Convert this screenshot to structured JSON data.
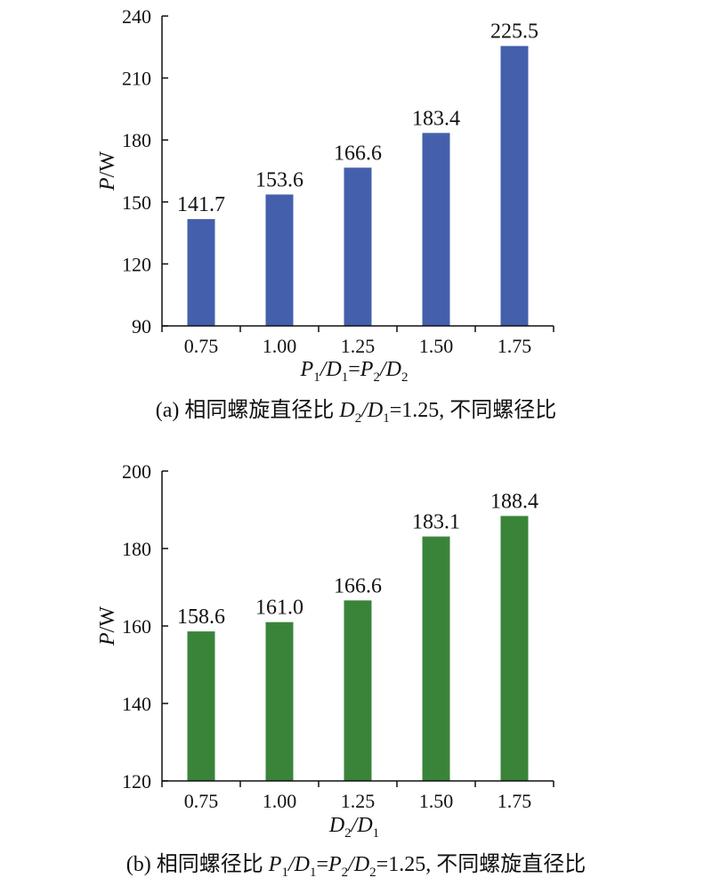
{
  "chart_data": [
    {
      "type": "bar",
      "categories": [
        "0.75",
        "1.00",
        "1.25",
        "1.50",
        "1.75"
      ],
      "values": [
        141.7,
        153.6,
        166.6,
        183.4,
        225.5
      ],
      "value_labels": [
        "141.7",
        "153.6",
        "166.6",
        "183.4",
        "225.5"
      ],
      "ylabel": {
        "var": "P",
        "unit": "/W"
      },
      "xlabel": {
        "a": "P",
        "a_sub": "1",
        "b": "/D",
        "b_sub": "1",
        "eq": "=",
        "c": "P",
        "c_sub": "2",
        "d": "/D",
        "d_sub": "2"
      },
      "yticks": [
        "90",
        "120",
        "150",
        "180",
        "210",
        "240"
      ],
      "ylim": [
        90,
        240
      ],
      "color": "#4460ac",
      "caption": {
        "prefix": "(a) 相同螺旋直径比 ",
        "v1": "D",
        "v1_sub": "2",
        "v2": "/D",
        "v2_sub": "1",
        "suffix": "=1.25, 不同螺径比"
      }
    },
    {
      "type": "bar",
      "categories": [
        "0.75",
        "1.00",
        "1.25",
        "1.50",
        "1.75"
      ],
      "values": [
        158.6,
        161.0,
        166.6,
        183.1,
        188.4
      ],
      "value_labels": [
        "158.6",
        "161.0",
        "166.6",
        "183.1",
        "188.4"
      ],
      "ylabel": {
        "var": "P",
        "unit": "/W"
      },
      "xlabel": {
        "a": "D",
        "a_sub": "2",
        "b": "/D",
        "b_sub": "1"
      },
      "yticks": [
        "120",
        "140",
        "160",
        "180",
        "200"
      ],
      "ylim": [
        120,
        200
      ],
      "color": "#3a843a",
      "caption": {
        "prefix": "(b) 相同螺径比 ",
        "v1": "P",
        "v1_sub": "1",
        "v2": "/D",
        "v2_sub": "1",
        "eq": "=",
        "v3": "P",
        "v3_sub": "2",
        "v4": "/D",
        "v4_sub": "2",
        "suffix": "=1.25, 不同螺旋直径比"
      }
    }
  ]
}
